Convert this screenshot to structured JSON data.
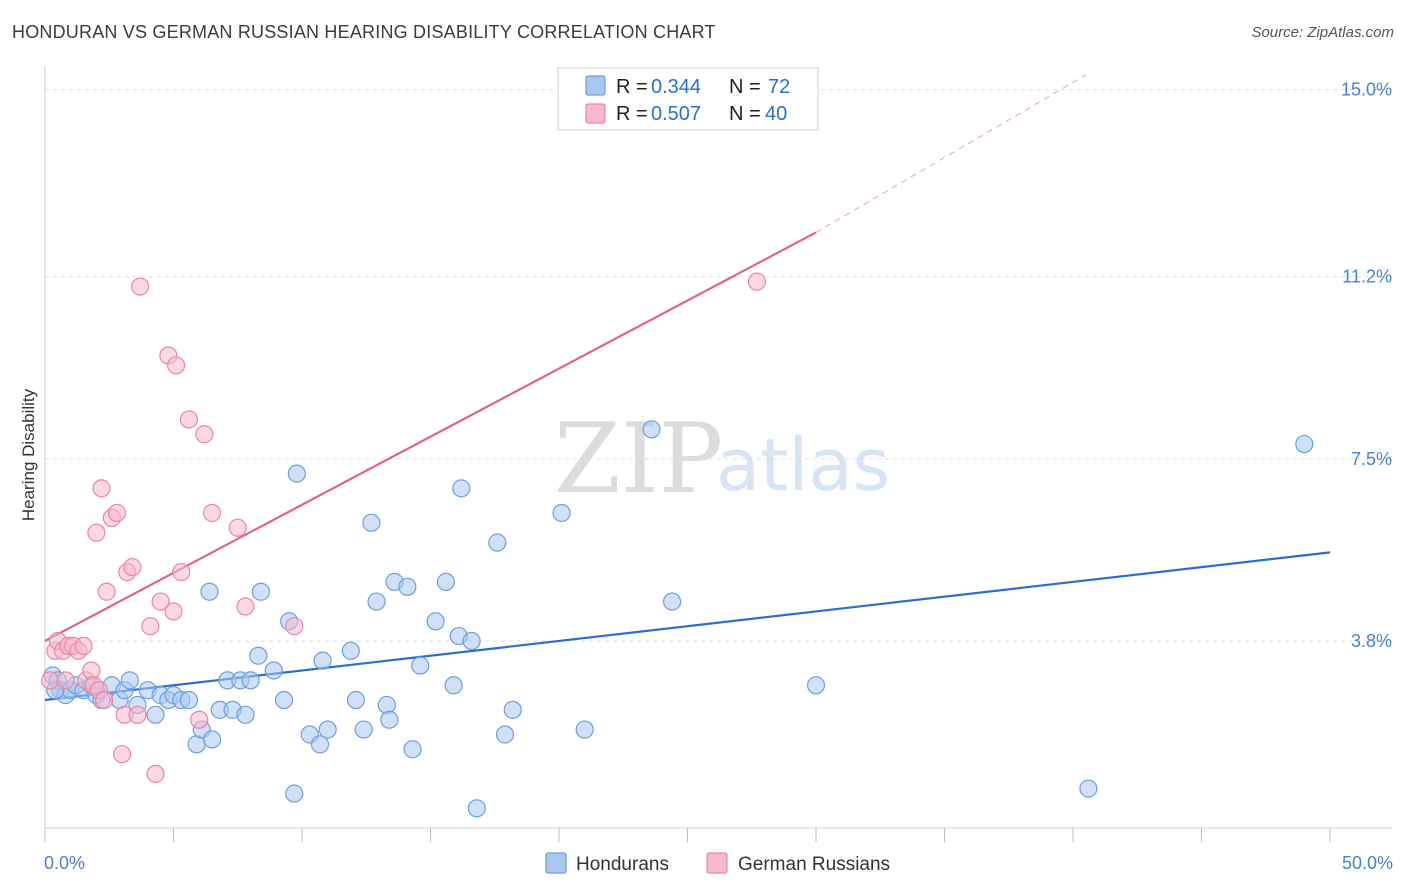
{
  "title": "HONDURAN VS GERMAN RUSSIAN HEARING DISABILITY CORRELATION CHART",
  "source": "Source: ZipAtlas.com",
  "watermark": {
    "zip": "ZIP",
    "atlas": "atlas"
  },
  "colors": {
    "blue_fill": "#a9c8f0",
    "blue_stroke": "#6c9fe0",
    "blue_line": "#2a6fd0",
    "pink_fill": "#f7b8cc",
    "pink_stroke": "#ea86a6",
    "pink_line": "#e0628d",
    "axis_text": "#4a7fd0",
    "grid": "#dedede"
  },
  "legend": {
    "rows": [
      {
        "r_label": "R = ",
        "r_value": "0.344",
        "n_label": "N = ",
        "n_value": "72"
      },
      {
        "r_label": "R = ",
        "r_value": "0.507",
        "n_label": "N = ",
        "n_value": "40"
      }
    ]
  },
  "chart_data": {
    "type": "scatter",
    "title": "HONDURAN VS GERMAN RUSSIAN HEARING DISABILITY CORRELATION CHART",
    "xlabel": "",
    "ylabel": "Hearing Disability",
    "xlim": [
      0,
      50
    ],
    "ylim": [
      0,
      15.4
    ],
    "x_tick_labels": [
      {
        "value": 0,
        "label": "0.0%"
      },
      {
        "value": 50,
        "label": "50.0%"
      }
    ],
    "y_tick_labels": [
      {
        "value": 3.8,
        "label": "3.8%"
      },
      {
        "value": 7.5,
        "label": "7.5%"
      },
      {
        "value": 11.2,
        "label": "11.2%"
      },
      {
        "value": 15.0,
        "label": "15.0%"
      }
    ],
    "gridlines": [
      3.8,
      7.5,
      11.2,
      15.0
    ],
    "legend_position": "top-center",
    "series": [
      {
        "name": "Hondurans",
        "color": "blue",
        "R": 0.344,
        "N": 72,
        "trend": {
          "x0": 0,
          "y0": 2.6,
          "x1": 50,
          "y1": 5.6
        },
        "points": [
          [
            0.3,
            3.1
          ],
          [
            0.5,
            3.0
          ],
          [
            0.6,
            2.8
          ],
          [
            0.8,
            2.7
          ],
          [
            1.0,
            2.8
          ],
          [
            1.2,
            2.9
          ],
          [
            1.5,
            2.8
          ],
          [
            1.8,
            2.9
          ],
          [
            2.0,
            2.7
          ],
          [
            2.2,
            2.6
          ],
          [
            2.6,
            2.9
          ],
          [
            2.9,
            2.6
          ],
          [
            3.1,
            2.8
          ],
          [
            3.3,
            3.0
          ],
          [
            3.6,
            2.5
          ],
          [
            4.0,
            2.8
          ],
          [
            4.3,
            2.3
          ],
          [
            4.5,
            2.7
          ],
          [
            4.8,
            2.6
          ],
          [
            5.0,
            2.7
          ],
          [
            5.3,
            2.6
          ],
          [
            5.6,
            2.6
          ],
          [
            5.9,
            1.7
          ],
          [
            6.1,
            2.0
          ],
          [
            6.4,
            4.8
          ],
          [
            6.5,
            1.8
          ],
          [
            6.8,
            2.4
          ],
          [
            7.1,
            3.0
          ],
          [
            7.3,
            2.4
          ],
          [
            7.6,
            3.0
          ],
          [
            7.8,
            2.3
          ],
          [
            8.0,
            3.0
          ],
          [
            8.3,
            3.5
          ],
          [
            8.4,
            4.8
          ],
          [
            8.9,
            3.2
          ],
          [
            9.3,
            2.6
          ],
          [
            9.5,
            4.2
          ],
          [
            9.7,
            0.7
          ],
          [
            9.8,
            7.2
          ],
          [
            10.3,
            1.9
          ],
          [
            10.7,
            1.7
          ],
          [
            10.8,
            3.4
          ],
          [
            11.0,
            2.0
          ],
          [
            11.9,
            3.6
          ],
          [
            12.1,
            2.6
          ],
          [
            12.4,
            2.0
          ],
          [
            12.7,
            6.2
          ],
          [
            12.9,
            4.6
          ],
          [
            13.3,
            2.5
          ],
          [
            13.4,
            2.2
          ],
          [
            13.6,
            5.0
          ],
          [
            14.1,
            4.9
          ],
          [
            14.3,
            1.6
          ],
          [
            14.6,
            3.3
          ],
          [
            15.2,
            4.2
          ],
          [
            15.6,
            5.0
          ],
          [
            15.9,
            2.9
          ],
          [
            16.1,
            3.9
          ],
          [
            16.2,
            6.9
          ],
          [
            16.6,
            3.8
          ],
          [
            16.8,
            0.4
          ],
          [
            17.6,
            5.8
          ],
          [
            17.9,
            1.9
          ],
          [
            18.2,
            2.4
          ],
          [
            20.1,
            6.4
          ],
          [
            21.0,
            2.0
          ],
          [
            23.6,
            8.1
          ],
          [
            24.4,
            4.6
          ],
          [
            30.0,
            2.9
          ],
          [
            40.6,
            0.8
          ],
          [
            49.0,
            7.8
          ],
          [
            0.4,
            2.8
          ]
        ]
      },
      {
        "name": "German Russians",
        "color": "pink",
        "R": 0.507,
        "N": 40,
        "trend": {
          "x0": 0,
          "y0": 3.8,
          "x1": 30,
          "y1": 12.1
        },
        "trend_extension": {
          "x0": 30,
          "y0": 12.1,
          "x1": 40.5,
          "y1": 15.3
        },
        "points": [
          [
            0.2,
            3.0
          ],
          [
            0.4,
            3.6
          ],
          [
            0.5,
            3.8
          ],
          [
            0.7,
            3.6
          ],
          [
            0.8,
            3.0
          ],
          [
            0.9,
            3.7
          ],
          [
            1.1,
            3.7
          ],
          [
            1.3,
            3.6
          ],
          [
            1.5,
            3.7
          ],
          [
            1.6,
            3.0
          ],
          [
            1.8,
            3.2
          ],
          [
            1.9,
            2.9
          ],
          [
            2.0,
            6.0
          ],
          [
            2.1,
            2.8
          ],
          [
            2.2,
            6.9
          ],
          [
            2.3,
            2.6
          ],
          [
            2.4,
            4.8
          ],
          [
            2.6,
            6.3
          ],
          [
            2.8,
            6.4
          ],
          [
            3.0,
            1.5
          ],
          [
            3.1,
            2.3
          ],
          [
            3.2,
            5.2
          ],
          [
            3.4,
            5.3
          ],
          [
            3.6,
            2.3
          ],
          [
            3.7,
            11.0
          ],
          [
            4.1,
            4.1
          ],
          [
            4.3,
            1.1
          ],
          [
            4.5,
            4.6
          ],
          [
            4.8,
            9.6
          ],
          [
            5.0,
            4.4
          ],
          [
            5.1,
            9.4
          ],
          [
            5.3,
            5.2
          ],
          [
            5.6,
            8.3
          ],
          [
            6.0,
            2.2
          ],
          [
            6.2,
            8.0
          ],
          [
            6.5,
            6.4
          ],
          [
            7.5,
            6.1
          ],
          [
            7.8,
            4.5
          ],
          [
            9.7,
            4.1
          ],
          [
            27.7,
            11.1
          ]
        ]
      }
    ]
  },
  "bottom_legend": [
    {
      "label": "Hondurans",
      "color": "blue"
    },
    {
      "label": "German Russians",
      "color": "pink"
    }
  ]
}
